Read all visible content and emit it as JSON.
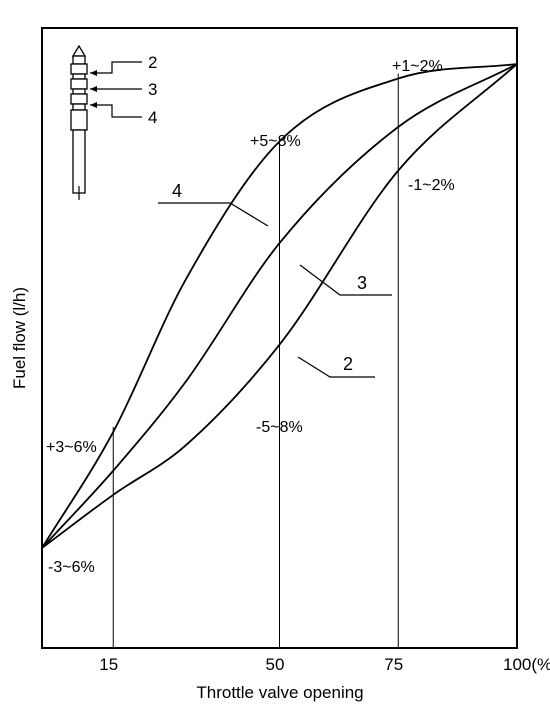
{
  "chart_data": {
    "type": "line",
    "title": "",
    "xlabel": "Throttle valve opening",
    "ylabel": "Fuel flow (l/h)",
    "x_ticks": [
      "15",
      "50",
      "75",
      "100(%)"
    ],
    "x_tick_values": [
      15,
      50,
      75,
      100
    ],
    "xlim": [
      0,
      100
    ],
    "ylim": [
      0,
      100
    ],
    "grid": false,
    "reference_lines_x": [
      15,
      50,
      75
    ],
    "series": [
      {
        "name": "4",
        "x": [
          0,
          15,
          30,
          50,
          75,
          100
        ],
        "values": [
          0,
          24,
          55,
          84,
          97,
          100
        ]
      },
      {
        "name": "3",
        "x": [
          0,
          15,
          30,
          50,
          75,
          100
        ],
        "values": [
          0,
          16,
          34,
          63,
          87,
          100
        ]
      },
      {
        "name": "2",
        "x": [
          0,
          15,
          30,
          50,
          75,
          100
        ],
        "values": [
          0,
          11,
          21,
          42,
          78,
          100
        ]
      }
    ],
    "annotations": [
      "+1~2%",
      "+5~8%",
      "-1~2%",
      "+3~6%",
      "-5~8%",
      "-3~6%"
    ],
    "inset_labels": [
      "2",
      "3",
      "4"
    ]
  }
}
